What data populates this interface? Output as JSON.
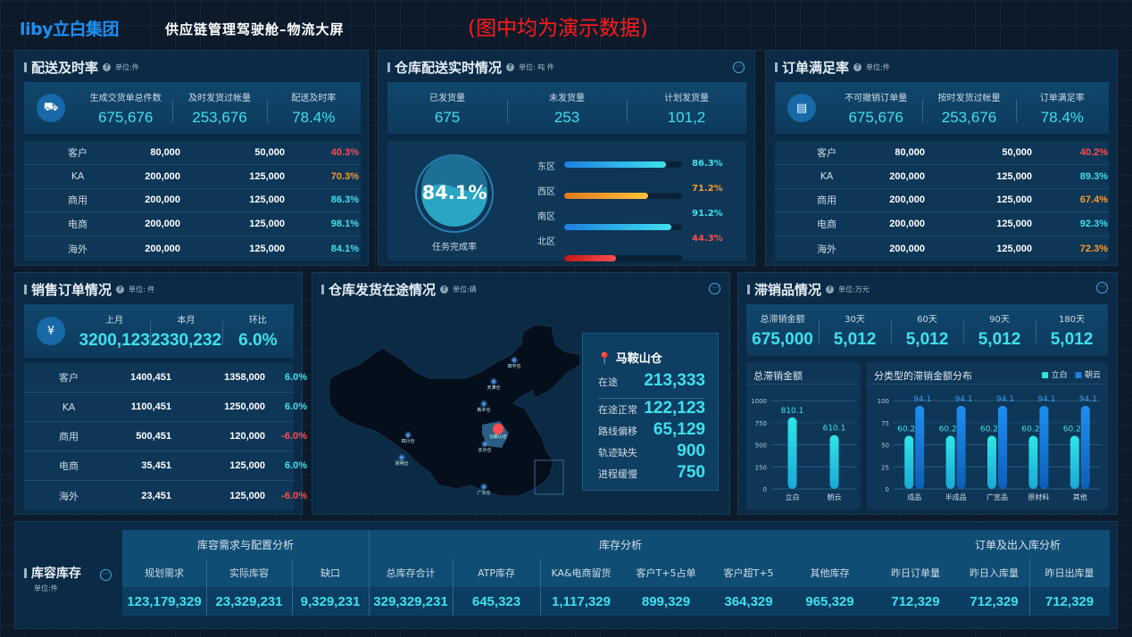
{
  "header": {
    "logo": "liby立白集团",
    "title": "供应链管理驾驶舱–物流大屏",
    "note": "(图中均为演示数据)"
  },
  "colors": {
    "value": "#3fe0ee",
    "bad": "#ff4d4f",
    "warn": "#ff9a2e",
    "background": "#0d1a2a"
  },
  "delivery": {
    "title": "配送及时率",
    "unit": "单位:件",
    "icon": "truck-icon",
    "summary": [
      {
        "label": "生成交货单总件数",
        "value": "675,676"
      },
      {
        "label": "及时发货过帐量",
        "value": "253,676"
      },
      {
        "label": "配送及时率",
        "value": "78.4%"
      }
    ],
    "rows": [
      [
        "客户",
        "80,000",
        "50,000",
        "40.3%",
        "red"
      ],
      [
        "KA",
        "200,000",
        "125,000",
        "70.3%",
        "orange"
      ],
      [
        "商用",
        "200,000",
        "125,000",
        "86.3%",
        "cyan"
      ],
      [
        "电商",
        "200,000",
        "125,000",
        "98.1%",
        "cyan"
      ],
      [
        "海外",
        "200,000",
        "125,000",
        "84.1%",
        "cyan"
      ]
    ]
  },
  "warehouse": {
    "title": "仓库配送实时情况",
    "unit": "单位: 吨 件",
    "summary": [
      {
        "label": "已发货量",
        "value": "675"
      },
      {
        "label": "未发货量",
        "value": "253"
      },
      {
        "label": "计划发货量",
        "value": "101,2"
      }
    ],
    "gauge": {
      "value": "84.1%",
      "percent": 84.1,
      "label": "任务完成率"
    },
    "regions": [
      {
        "name": "东区",
        "value": "86.3%",
        "percent": 86.3,
        "color": "cyan"
      },
      {
        "name": "西区",
        "value": "71.2%",
        "percent": 71.2,
        "color": "orange"
      },
      {
        "name": "南区",
        "value": "91.2%",
        "percent": 91.2,
        "color": "cyan"
      },
      {
        "name": "北区",
        "value": "44.3%",
        "percent": 44.3,
        "color": "red"
      }
    ]
  },
  "orders": {
    "title": "订单满足率",
    "unit": "单位:件",
    "icon": "document-icon",
    "summary": [
      {
        "label": "不可撤销订单量",
        "value": "675,676"
      },
      {
        "label": "按时发货过帐量",
        "value": "253,676"
      },
      {
        "label": "订单满足率",
        "value": "78.4%"
      }
    ],
    "rows": [
      [
        "客户",
        "80,000",
        "50,000",
        "40.2%",
        "red"
      ],
      [
        "KA",
        "200,000",
        "125,000",
        "89.3%",
        "cyan"
      ],
      [
        "商用",
        "200,000",
        "125,000",
        "67.4%",
        "orange"
      ],
      [
        "电商",
        "200,000",
        "125,000",
        "92.3%",
        "cyan"
      ],
      [
        "海外",
        "200,000",
        "125,000",
        "72.3%",
        "orange"
      ]
    ]
  },
  "sales": {
    "title": "销售订单情况",
    "unit": "单位: 件",
    "icon": "yen-icon",
    "summary": [
      {
        "label": "上月",
        "value": "3200,123"
      },
      {
        "label": "本月",
        "value": "2330,232"
      },
      {
        "label": "环比",
        "value": "6.0%"
      }
    ],
    "rows": [
      [
        "客户",
        "1400,451",
        "1358,000",
        "6.0%",
        "cyan"
      ],
      [
        "KA",
        "1100,451",
        "1250,000",
        "6.0%",
        "cyan"
      ],
      [
        "商用",
        "500,451",
        "120,000",
        "-6.0%",
        "red"
      ],
      [
        "电商",
        "35,451",
        "125,000",
        "6.0%",
        "cyan"
      ],
      [
        "海外",
        "23,451",
        "125,000",
        "-6.0%",
        "red"
      ]
    ]
  },
  "transit": {
    "title": "仓库发货在途情况",
    "unit": "单位:辆",
    "cities": [
      "四平仓",
      "天津仓",
      "新乡仓",
      "马鞍山仓",
      "四川仓",
      "长沙仓",
      "昆明仓",
      "广东仓"
    ],
    "selected": "马鞍山仓",
    "stats": [
      {
        "label": "在途",
        "value": "213,333"
      },
      {
        "label": "在途正常",
        "value": "122,123"
      },
      {
        "label": "路线偏移",
        "value": "65,129"
      },
      {
        "label": "轨迹缺失",
        "value": "900"
      },
      {
        "label": "进程缓慢",
        "value": "750"
      }
    ]
  },
  "slow": {
    "title": "滞销品情况",
    "unit": "单位:万元",
    "summary": [
      {
        "label": "总滞销金额",
        "value": "675,000"
      },
      {
        "label": "30天",
        "value": "5,012"
      },
      {
        "label": "60天",
        "value": "5,012"
      },
      {
        "label": "90天",
        "value": "5,012"
      },
      {
        "label": "180天",
        "value": "5,012"
      }
    ]
  },
  "chart_data": [
    {
      "type": "bar",
      "title": "总滞销金额",
      "categories": [
        "立白",
        "朝云"
      ],
      "values": [
        810.1,
        610.1
      ],
      "ylim": [
        0,
        1000
      ],
      "yticks": [
        0,
        250,
        500,
        750,
        1000
      ],
      "grid": true
    },
    {
      "type": "bar",
      "title": "分类型的滞销金额分布",
      "categories": [
        "成品",
        "半成品",
        "广宣品",
        "原材料",
        "其他"
      ],
      "series": [
        {
          "name": "立白",
          "values": [
            60.2,
            60.2,
            60.2,
            60.2,
            60.2
          ],
          "color": "#2de6e6"
        },
        {
          "name": "朝云",
          "values": [
            94.1,
            94.1,
            94.1,
            94.1,
            94.1
          ],
          "color": "#1e7fe0"
        }
      ],
      "ylim": [
        0,
        100
      ],
      "yticks": [
        0,
        25,
        50,
        75,
        100
      ],
      "legend": "top-right",
      "grid": true
    }
  ],
  "inventory": {
    "title": "库容库存",
    "unit": "单位:件",
    "groups": [
      "库容需求与配置分析",
      "库存分析",
      "订单及出入库分析"
    ],
    "columns": [
      {
        "label": "规划需求",
        "value": "123,179,329"
      },
      {
        "label": "实际库容",
        "value": "23,329,231"
      },
      {
        "label": "缺口",
        "value": "9,329,231"
      },
      {
        "label": "总库存合计",
        "value": "329,329,231"
      },
      {
        "label": "ATP库存",
        "value": "645,323"
      },
      {
        "label": "KA&电商留货",
        "value": "1,117,329"
      },
      {
        "label": "客户T+5占单",
        "value": "899,329"
      },
      {
        "label": "客户超T+5",
        "value": "364,329"
      },
      {
        "label": "其他库存",
        "value": "965,329"
      },
      {
        "label": "昨日订单量",
        "value": "712,329"
      },
      {
        "label": "昨日入库量",
        "value": "712,329"
      },
      {
        "label": "昨日出库量",
        "value": "712,329"
      }
    ]
  }
}
